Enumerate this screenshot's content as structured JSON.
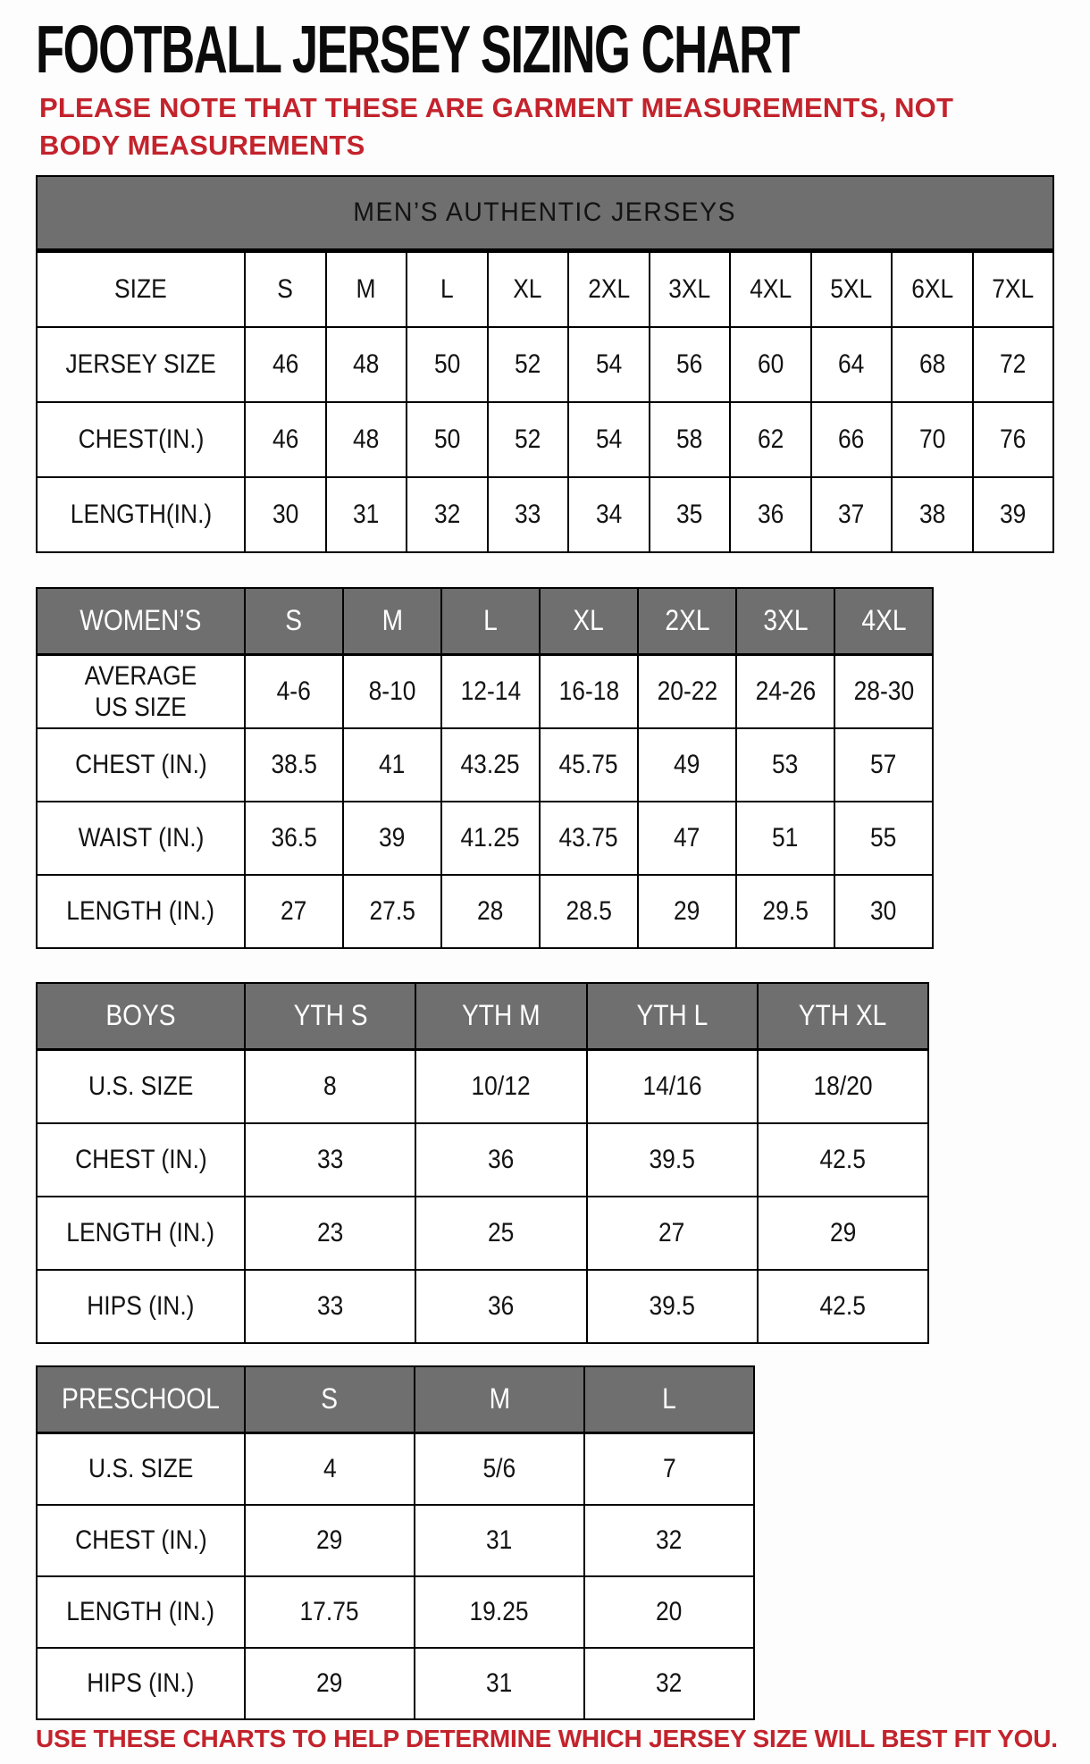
{
  "page": {
    "title": "FOOTBALL JERSEY SIZING CHART",
    "subtitle": "PLEASE NOTE THAT THESE ARE GARMENT MEASUREMENTS, NOT BODY MEASUREMENTS",
    "footer": "USE THESE CHARTS TO HELP DETERMINE WHICH JERSEY SIZE WILL BEST FIT YOU."
  },
  "colors": {
    "header_gray": "#6F6F6F",
    "accent_red": "#C3232C",
    "text_black": "#131313"
  },
  "tables": [
    {
      "key": "mens",
      "name": "mens-authentic-jerseys",
      "banner": "MEN’S AUTHENTIC JERSEYS",
      "columns": [
        "SIZE",
        "S",
        "M",
        "L",
        "XL",
        "2XL",
        "3XL",
        "4XL",
        "5XL",
        "6XL",
        "7XL"
      ],
      "rows": [
        {
          "label": "JERSEY SIZE",
          "values": [
            "46",
            "48",
            "50",
            "52",
            "54",
            "56",
            "60",
            "64",
            "68",
            "72"
          ]
        },
        {
          "label": "CHEST(IN.)",
          "values": [
            "46",
            "48",
            "50",
            "52",
            "54",
            "58",
            "62",
            "66",
            "70",
            "76"
          ]
        },
        {
          "label": "LENGTH(IN.)",
          "values": [
            "30",
            "31",
            "32",
            "33",
            "34",
            "35",
            "36",
            "37",
            "38",
            "39"
          ]
        }
      ]
    },
    {
      "key": "womens",
      "name": "womens-jerseys",
      "columns": [
        "WOMEN’S",
        "S",
        "M",
        "L",
        "XL",
        "2XL",
        "3XL",
        "4XL"
      ],
      "rows": [
        {
          "label": "AVERAGE\nUS SIZE",
          "values": [
            "4-6",
            "8-10",
            "12-14",
            "16-18",
            "20-22",
            "24-26",
            "28-30"
          ]
        },
        {
          "label": "CHEST (IN.)",
          "values": [
            "38.5",
            "41",
            "43.25",
            "45.75",
            "49",
            "53",
            "57"
          ]
        },
        {
          "label": "WAIST (IN.)",
          "values": [
            "36.5",
            "39",
            "41.25",
            "43.75",
            "47",
            "51",
            "55"
          ]
        },
        {
          "label": "LENGTH (IN.)",
          "values": [
            "27",
            "27.5",
            "28",
            "28.5",
            "29",
            "29.5",
            "30"
          ]
        }
      ]
    },
    {
      "key": "boys",
      "name": "boys-jerseys",
      "columns": [
        "BOYS",
        "YTH S",
        "YTH M",
        "YTH L",
        "YTH XL"
      ],
      "rows": [
        {
          "label": "U.S. SIZE",
          "values": [
            "8",
            "10/12",
            "14/16",
            "18/20"
          ]
        },
        {
          "label": "CHEST (IN.)",
          "values": [
            "33",
            "36",
            "39.5",
            "42.5"
          ]
        },
        {
          "label": "LENGTH (IN.)",
          "values": [
            "23",
            "25",
            "27",
            "29"
          ]
        },
        {
          "label": "HIPS (IN.)",
          "values": [
            "33",
            "36",
            "39.5",
            "42.5"
          ]
        }
      ]
    },
    {
      "key": "preschool",
      "name": "preschool-jerseys",
      "columns": [
        "PRESCHOOL",
        "S",
        "M",
        "L"
      ],
      "rows": [
        {
          "label": "U.S. SIZE",
          "values": [
            "4",
            "5/6",
            "7"
          ]
        },
        {
          "label": "CHEST (IN.)",
          "values": [
            "29",
            "31",
            "32"
          ]
        },
        {
          "label": "LENGTH (IN.)",
          "values": [
            "17.75",
            "19.25",
            "20"
          ]
        },
        {
          "label": "HIPS (IN.)",
          "values": [
            "29",
            "31",
            "32"
          ]
        }
      ]
    }
  ]
}
